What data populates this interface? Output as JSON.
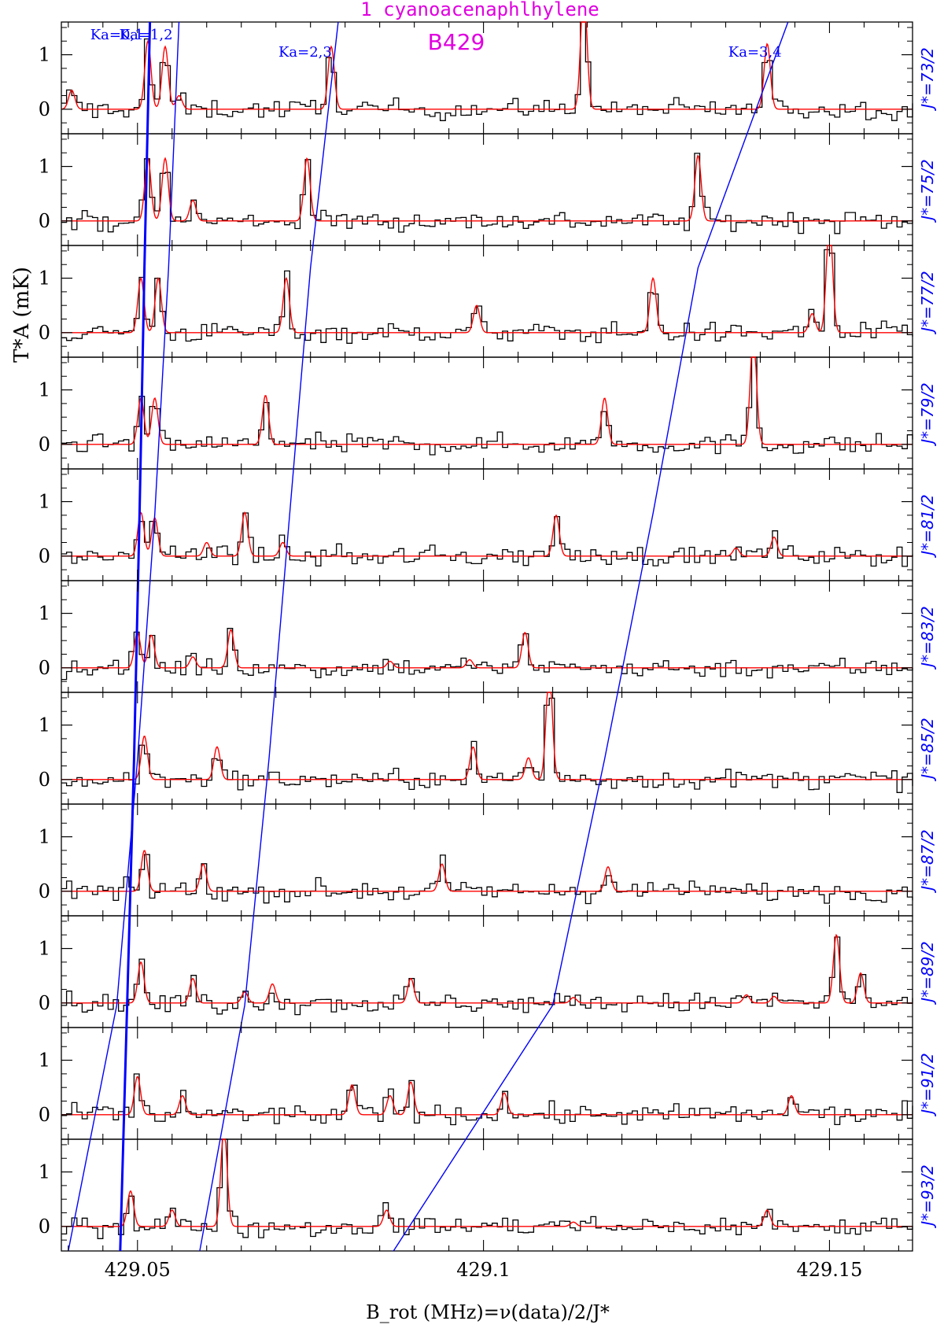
{
  "chart_data": {
    "type": "line",
    "title": "1 cyanoacenaphlhylene",
    "subtitle": "B429",
    "xlabel": "B_rot (MHz)=ν(data)/2/J*",
    "ylabel": "T*A (mK)",
    "xlim": [
      429.039,
      429.162
    ],
    "ylim": [
      -0.45,
      1.6
    ],
    "x_ticks": [
      429.05,
      429.1,
      429.15
    ],
    "x_tick_labels": [
      "429.05",
      "429.1",
      "429.15"
    ],
    "y_ticks": [
      0,
      1
    ],
    "y_tick_labels": [
      "0",
      "1"
    ],
    "grid": false,
    "legend": "none",
    "colors": {
      "observed": "#000000",
      "model": "#ff0000",
      "guides": "#0000ff",
      "title": "#e000e0"
    },
    "panels": [
      {
        "label": "J*=73/2",
        "lines": [
          {
            "x": 429.0405,
            "h": 0.35
          },
          {
            "x": 429.0515,
            "h": 1.25
          },
          {
            "x": 429.054,
            "h": 1.15
          },
          {
            "x": 429.056,
            "h": 0.25
          },
          {
            "x": 429.078,
            "h": 1.15
          },
          {
            "x": 429.1145,
            "h": 2.2
          },
          {
            "x": 429.141,
            "h": 1.2
          }
        ]
      },
      {
        "label": "J*=75/2",
        "lines": [
          {
            "x": 429.0515,
            "h": 1.15
          },
          {
            "x": 429.054,
            "h": 1.15
          },
          {
            "x": 429.058,
            "h": 0.38
          },
          {
            "x": 429.0745,
            "h": 1.15
          },
          {
            "x": 429.131,
            "h": 1.2
          }
        ]
      },
      {
        "label": "J*=77/2",
        "lines": [
          {
            "x": 429.0505,
            "h": 1.0
          },
          {
            "x": 429.053,
            "h": 1.0
          },
          {
            "x": 429.0715,
            "h": 1.0
          },
          {
            "x": 429.099,
            "h": 0.5
          },
          {
            "x": 429.1245,
            "h": 1.0
          },
          {
            "x": 429.1475,
            "h": 0.35
          },
          {
            "x": 429.15,
            "h": 2.0
          }
        ]
      },
      {
        "label": "J*=79/2",
        "lines": [
          {
            "x": 429.0505,
            "h": 0.85
          },
          {
            "x": 429.0525,
            "h": 0.85
          },
          {
            "x": 429.0685,
            "h": 0.9
          },
          {
            "x": 429.1175,
            "h": 0.85
          },
          {
            "x": 429.139,
            "h": 2.0
          }
        ]
      },
      {
        "label": "J*=81/2",
        "lines": [
          {
            "x": 429.0505,
            "h": 0.8
          },
          {
            "x": 429.0525,
            "h": 0.7
          },
          {
            "x": 429.06,
            "h": 0.25
          },
          {
            "x": 429.0655,
            "h": 0.8
          },
          {
            "x": 429.071,
            "h": 0.25
          },
          {
            "x": 429.1105,
            "h": 0.75
          },
          {
            "x": 429.1365,
            "h": 0.15
          },
          {
            "x": 429.142,
            "h": 0.35
          }
        ]
      },
      {
        "label": "J*=83/2",
        "lines": [
          {
            "x": 429.05,
            "h": 0.65
          },
          {
            "x": 429.052,
            "h": 0.6
          },
          {
            "x": 429.058,
            "h": 0.2
          },
          {
            "x": 429.0635,
            "h": 0.7
          },
          {
            "x": 429.0865,
            "h": 0.12
          },
          {
            "x": 429.098,
            "h": 0.15
          },
          {
            "x": 429.106,
            "h": 0.65
          }
        ]
      },
      {
        "label": "J*=85/2",
        "lines": [
          {
            "x": 429.051,
            "h": 0.8
          },
          {
            "x": 429.0615,
            "h": 0.6
          },
          {
            "x": 429.0985,
            "h": 0.6
          },
          {
            "x": 429.1065,
            "h": 0.4
          },
          {
            "x": 429.1095,
            "h": 2.0
          }
        ]
      },
      {
        "label": "J*=87/2",
        "lines": [
          {
            "x": 429.051,
            "h": 0.75
          },
          {
            "x": 429.0595,
            "h": 0.5
          },
          {
            "x": 429.094,
            "h": 0.5
          },
          {
            "x": 429.118,
            "h": 0.45
          }
        ]
      },
      {
        "label": "J*=89/2",
        "lines": [
          {
            "x": 429.0505,
            "h": 0.75
          },
          {
            "x": 429.058,
            "h": 0.45
          },
          {
            "x": 429.0655,
            "h": 0.2
          },
          {
            "x": 429.0695,
            "h": 0.35
          },
          {
            "x": 429.0895,
            "h": 0.45
          },
          {
            "x": 429.113,
            "h": 0.1
          },
          {
            "x": 429.138,
            "h": 0.15
          },
          {
            "x": 429.142,
            "h": 0.12
          },
          {
            "x": 429.151,
            "h": 1.25
          },
          {
            "x": 429.1545,
            "h": 0.55
          }
        ]
      },
      {
        "label": "J*=91/2",
        "lines": [
          {
            "x": 429.05,
            "h": 0.7
          },
          {
            "x": 429.0565,
            "h": 0.35
          },
          {
            "x": 429.081,
            "h": 0.55
          },
          {
            "x": 429.0865,
            "h": 0.35
          },
          {
            "x": 429.0895,
            "h": 0.6
          },
          {
            "x": 429.103,
            "h": 0.4
          },
          {
            "x": 429.1445,
            "h": 0.35
          }
        ]
      },
      {
        "label": "J*=93/2",
        "lines": [
          {
            "x": 429.049,
            "h": 0.65
          },
          {
            "x": 429.055,
            "h": 0.3
          },
          {
            "x": 429.0625,
            "h": 1.8
          },
          {
            "x": 429.086,
            "h": 0.3
          },
          {
            "x": 429.113,
            "h": 0.08
          },
          {
            "x": 429.141,
            "h": 0.3
          }
        ]
      }
    ],
    "guide_curves": [
      {
        "label": "Ka=0,1",
        "x": [
          429.0518,
          429.051,
          429.0503,
          429.0495,
          429.0485,
          429.0475
        ]
      },
      {
        "label": "Ka=1,2",
        "x": [
          429.056,
          429.0545,
          429.0525,
          429.05,
          429.047,
          429.04
        ]
      },
      {
        "label": "Ka=2,3",
        "x": [
          429.079,
          429.075,
          429.072,
          429.069,
          429.0655,
          429.059
        ]
      },
      {
        "label": "Ka=3,4",
        "x": [
          429.144,
          429.131,
          429.1245,
          429.1175,
          429.11,
          429.087
        ]
      }
    ]
  }
}
